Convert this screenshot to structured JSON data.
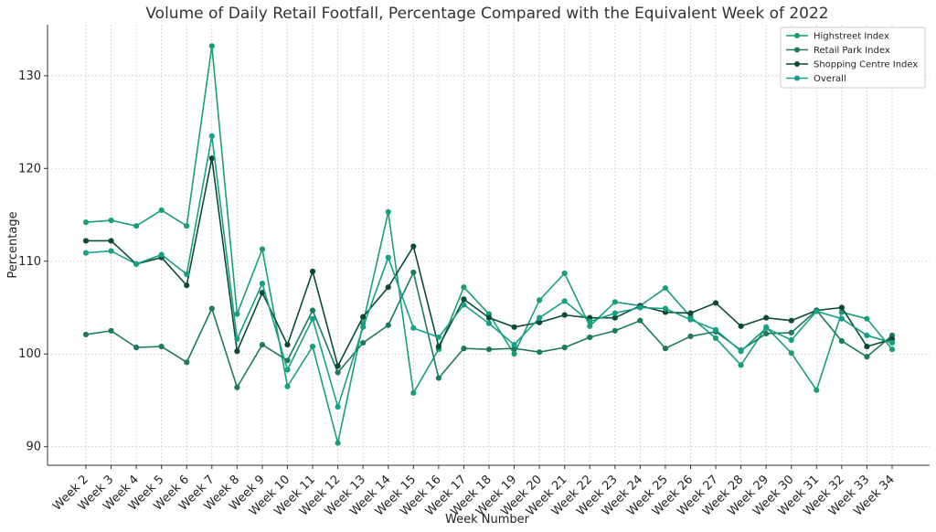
{
  "chart_data": {
    "type": "line",
    "title": "Volume of Daily Retail Footfall, Percentage Compared with the Equivalent Week of 2022",
    "xlabel": "Week Number",
    "ylabel": "Percentage",
    "ylim": [
      88,
      135.5
    ],
    "yticks": [
      90,
      100,
      110,
      120,
      130
    ],
    "grid": true,
    "legend_position": "top-right",
    "categories": [
      "Week 2",
      "Week 3",
      "Week 4",
      "Week 5",
      "Week 6",
      "Week 7",
      "Week 8",
      "Week 9",
      "Week 10",
      "Week 11",
      "Week 12",
      "Week 13",
      "Week 14",
      "Week 15",
      "Week 16",
      "Week 17",
      "Week 18",
      "Week 19",
      "Week 20",
      "Week 21",
      "Week 22",
      "Week 23",
      "Week 24",
      "Week 25",
      "Week 26",
      "Week 27",
      "Week 28",
      "Week 29",
      "Week 30",
      "Week 31",
      "Week 32",
      "Week 33",
      "Week 34"
    ],
    "series": [
      {
        "name": "Highstreet Index",
        "color": "#1a9e7a",
        "values": [
          114.2,
          114.4,
          113.8,
          115.5,
          113.8,
          133.2,
          104.3,
          111.3,
          96.5,
          100.8,
          90.4,
          103.3,
          115.3,
          95.8,
          100.5,
          107.2,
          104.3,
          100.0,
          105.8,
          108.7,
          103.0,
          105.6,
          105.2,
          107.1,
          104.0,
          101.7,
          98.8,
          102.9,
          100.1,
          96.1,
          104.5,
          103.8,
          100.5
        ]
      },
      {
        "name": "Retail Park Index",
        "color": "#1d7a5c",
        "values": [
          102.1,
          102.5,
          100.7,
          100.8,
          99.1,
          104.9,
          96.4,
          101.0,
          99.3,
          104.7,
          98.0,
          101.2,
          103.1,
          108.8,
          97.4,
          100.6,
          100.5,
          100.6,
          100.2,
          100.7,
          101.8,
          102.5,
          103.6,
          100.6,
          101.9,
          102.4,
          100.4,
          102.2,
          102.3,
          104.7,
          101.4,
          99.7,
          102.0
        ]
      },
      {
        "name": "Shopping Centre Index",
        "color": "#0c4a36",
        "values": [
          112.2,
          112.2,
          109.7,
          110.4,
          107.4,
          121.1,
          100.3,
          106.6,
          101.0,
          108.9,
          98.7,
          104.0,
          107.2,
          111.6,
          100.8,
          105.9,
          103.9,
          102.9,
          103.4,
          104.2,
          103.9,
          103.9,
          105.2,
          104.5,
          104.4,
          105.5,
          103.0,
          103.9,
          103.6,
          104.7,
          105.0,
          100.8,
          101.6
        ]
      },
      {
        "name": "Overall",
        "color": "#16a085",
        "values": [
          110.9,
          111.1,
          109.7,
          110.7,
          108.6,
          123.5,
          101.6,
          107.6,
          98.3,
          103.8,
          94.3,
          102.9,
          110.4,
          102.8,
          101.8,
          105.3,
          103.3,
          101.0,
          103.9,
          105.7,
          103.5,
          104.4,
          105.0,
          104.9,
          103.7,
          102.6,
          100.3,
          102.8,
          101.5,
          104.6,
          103.8,
          102.0,
          101.2
        ]
      }
    ]
  }
}
